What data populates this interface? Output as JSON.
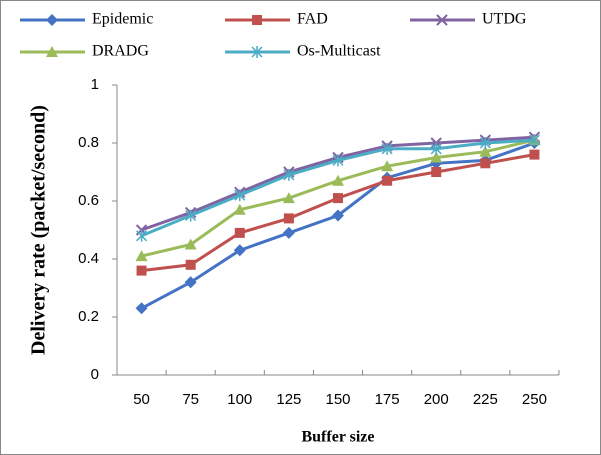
{
  "chart_data": {
    "type": "line",
    "x_label": "Buffer size",
    "y_label": "Delivery rate (packet/second)",
    "categories": [
      50,
      75,
      100,
      125,
      150,
      175,
      200,
      225,
      250
    ],
    "ylim": [
      0,
      1
    ],
    "yticks": [
      0,
      0.2,
      0.4,
      0.6,
      0.8,
      1
    ],
    "grid": false,
    "legend": "top",
    "series": [
      {
        "name": "Epidemic",
        "color": "#4472c4",
        "marker": "diamond",
        "values": [
          0.23,
          0.32,
          0.43,
          0.49,
          0.55,
          0.68,
          0.73,
          0.74,
          0.8
        ]
      },
      {
        "name": "FAD",
        "color": "#c0504d",
        "marker": "square",
        "values": [
          0.36,
          0.38,
          0.49,
          0.54,
          0.61,
          0.67,
          0.7,
          0.73,
          0.76
        ]
      },
      {
        "name": "UTDG",
        "color": "#8064a2",
        "marker": "x",
        "values": [
          0.5,
          0.56,
          0.63,
          0.7,
          0.75,
          0.79,
          0.8,
          0.81,
          0.82
        ]
      },
      {
        "name": "DRADG",
        "color": "#9bbb59",
        "marker": "triangle",
        "values": [
          0.41,
          0.45,
          0.57,
          0.61,
          0.67,
          0.72,
          0.75,
          0.77,
          0.81
        ]
      },
      {
        "name": "Os-Multicast",
        "color": "#4bacc6",
        "marker": "asterisk",
        "values": [
          0.48,
          0.55,
          0.62,
          0.69,
          0.74,
          0.78,
          0.78,
          0.8,
          0.81
        ]
      }
    ]
  }
}
